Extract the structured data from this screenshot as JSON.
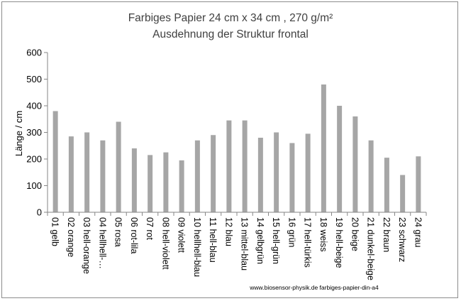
{
  "chart_data": {
    "type": "bar",
    "title": "Farbiges Papier 24 cm x 34 cm , 270 g/m²",
    "subtitle": "Ausdehnung der Struktur frontal",
    "xlabel": "",
    "ylabel": "Länge / cm",
    "ylim": [
      0,
      600
    ],
    "yticks": [
      0,
      100,
      200,
      300,
      400,
      500,
      600
    ],
    "grid": false,
    "legend": "none",
    "bar_color": "#a6a6a6",
    "categories": [
      "01 gelb",
      "02 orange",
      "03 hell-orange",
      "04 hellhell-…",
      "05 rosa",
      "06 rot-lila",
      "07 rot",
      "08 hell-violett",
      "09 violett",
      "10 hellhell-blau",
      "11 hell-blau",
      "12 blau",
      "13 mittel-blau",
      "14 gelbgrün",
      "15 hell-grün",
      "16 grün",
      "17 hell-türkis",
      "18 weiss",
      "19 hell-beige",
      "20 beige",
      "21 dunkel-beige",
      "22 braun",
      "23 schwarz",
      "24 grau"
    ],
    "values": [
      380,
      285,
      300,
      270,
      340,
      240,
      215,
      225,
      195,
      270,
      290,
      345,
      345,
      280,
      300,
      260,
      295,
      480,
      400,
      360,
      270,
      205,
      140,
      210
    ],
    "annotation": "www.biosensor-physik.de farbiges-papier-din-a4"
  }
}
